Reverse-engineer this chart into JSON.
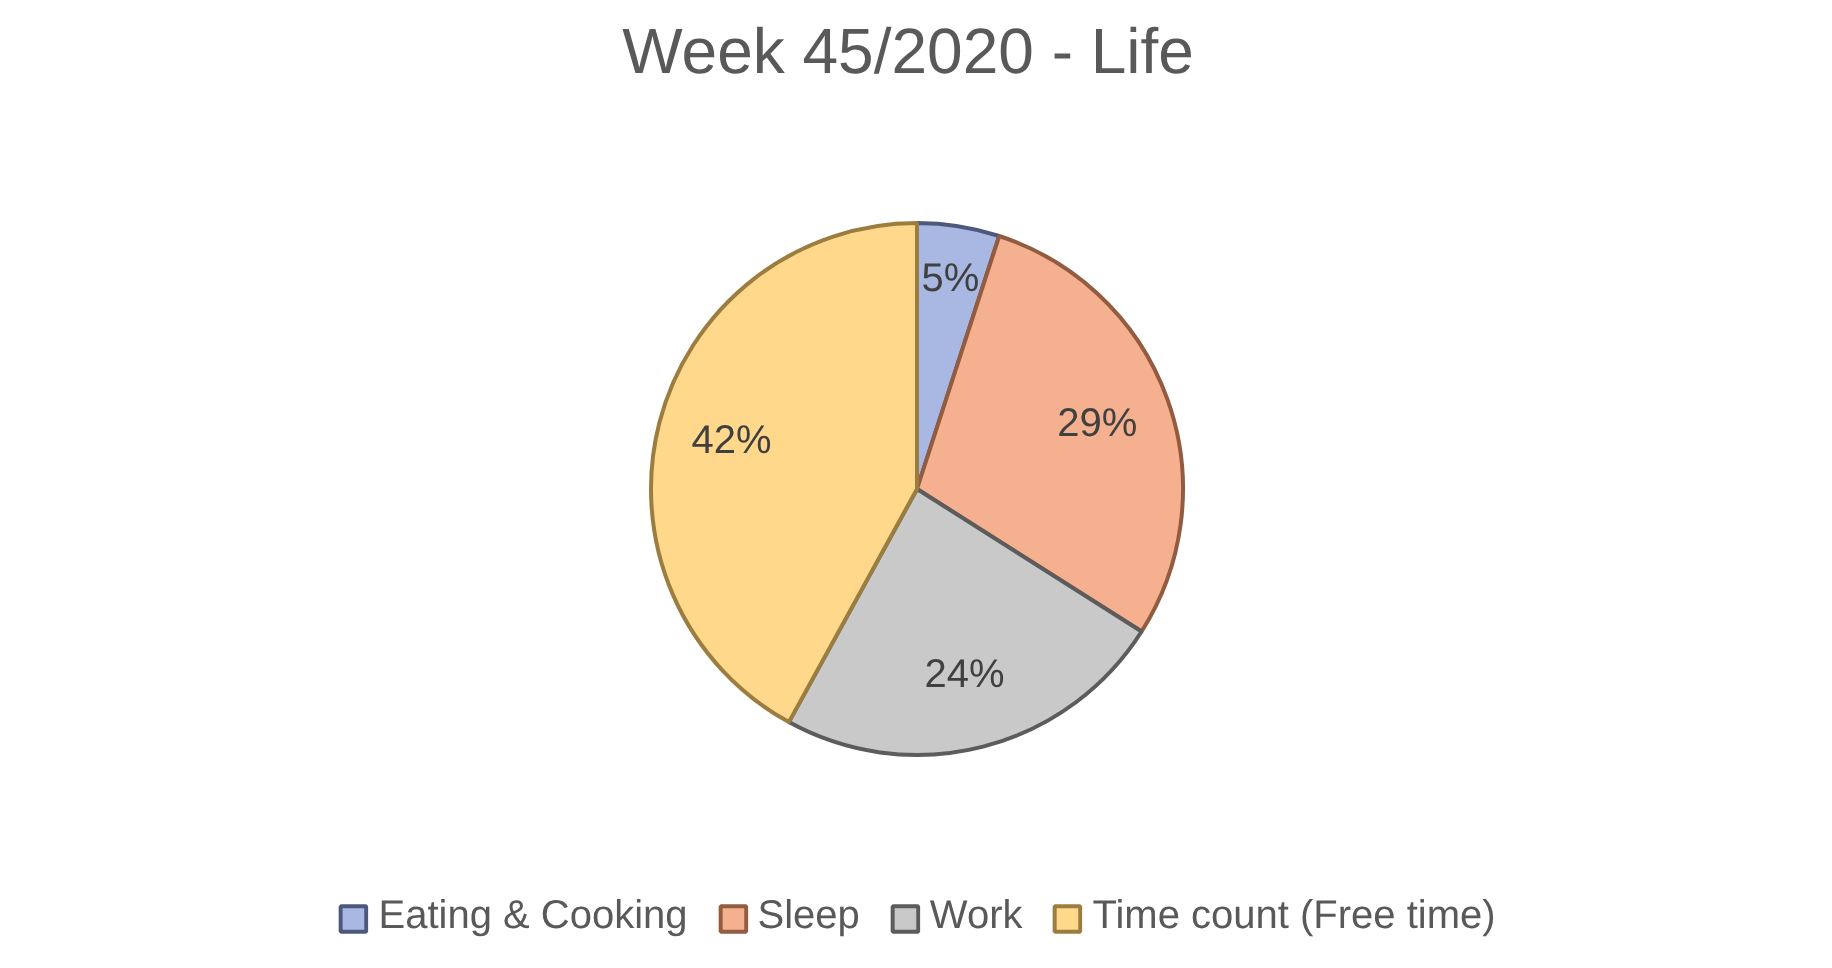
{
  "chart_data": {
    "type": "pie",
    "title": "Week 45/2020  - Life",
    "categories": [
      "Eating & Cooking",
      "Sleep",
      "Work",
      "Time count (Free time)"
    ],
    "values": [
      5,
      29,
      24,
      42
    ],
    "colors": [
      "#a9b8e3",
      "#f5b08f",
      "#c9c9c9",
      "#ffd88c"
    ],
    "value_labels": [
      "5%",
      "29%",
      "24%",
      "42%"
    ],
    "legend": "bottom"
  }
}
